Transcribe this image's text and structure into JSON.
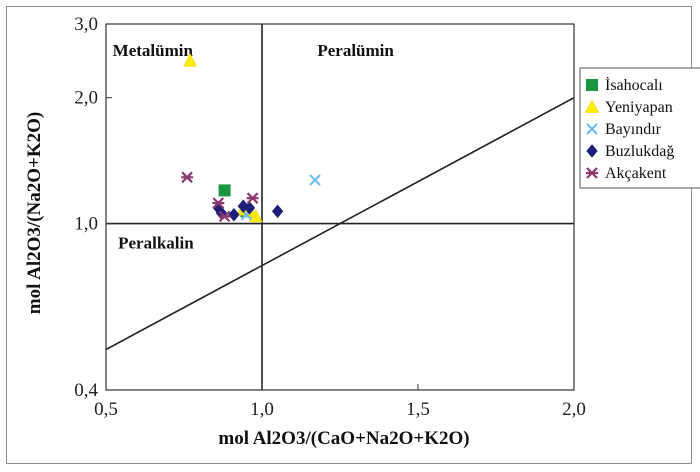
{
  "chart_data": {
    "type": "scatter",
    "title": "",
    "xlabel": "mol Al2O3/(CaO+Na2O+K2O)",
    "ylabel": "mol Al2O3/(Na2O+K2O)",
    "xlim": [
      0.5,
      2.0
    ],
    "ylim": [
      0.4,
      3.0
    ],
    "y_scale": "log",
    "grid": false,
    "legend_position": "right",
    "x_ticks": [
      {
        "value": 0.5,
        "label": "0,5"
      },
      {
        "value": 1.0,
        "label": "1,0"
      },
      {
        "value": 1.5,
        "label": "1,5"
      },
      {
        "value": 2.0,
        "label": "2,0"
      }
    ],
    "y_ticks": [
      {
        "value": 0.4,
        "label": "0,4"
      },
      {
        "value": 1.0,
        "label": "1,0"
      },
      {
        "value": 2.0,
        "label": "2,0"
      },
      {
        "value": 3.0,
        "label": "3,0"
      }
    ],
    "regions": [
      {
        "label": "Metalümin",
        "x": 0.65,
        "y": 2.6
      },
      {
        "label": "Peralümin",
        "x": 1.3,
        "y": 2.6
      },
      {
        "label": "Peralkalin",
        "x": 0.66,
        "y": 0.9
      }
    ],
    "boundaries": [
      {
        "name": "vertical",
        "points": [
          [
            1.0,
            0.4
          ],
          [
            1.0,
            3.0
          ]
        ]
      },
      {
        "name": "horizontal",
        "points": [
          [
            0.5,
            1.0
          ],
          [
            2.0,
            1.0
          ]
        ]
      },
      {
        "name": "diagonal",
        "points": [
          [
            0.5,
            0.5
          ],
          [
            2.0,
            2.0
          ]
        ]
      }
    ],
    "series": [
      {
        "name": "İsahocalı",
        "marker": "square",
        "color": "#1a9641",
        "points": [
          [
            0.88,
            1.2
          ],
          [
            0.95,
            1.07
          ]
        ]
      },
      {
        "name": "Yeniyapan",
        "marker": "triangle",
        "color": "#ffee00",
        "points": [
          [
            0.77,
            2.45
          ],
          [
            0.98,
            1.04
          ],
          [
            0.96,
            1.07
          ],
          [
            0.94,
            1.08
          ]
        ]
      },
      {
        "name": "Bayındır",
        "marker": "x",
        "color": "#66bbee",
        "points": [
          [
            1.17,
            1.27
          ],
          [
            0.95,
            1.05
          ]
        ]
      },
      {
        "name": "Buzlukdağ",
        "marker": "diamond",
        "color": "#1f1f7a",
        "points": [
          [
            0.86,
            1.09
          ],
          [
            0.87,
            1.06
          ],
          [
            0.91,
            1.05
          ],
          [
            0.94,
            1.1
          ],
          [
            1.05,
            1.07
          ],
          [
            0.96,
            1.09
          ]
        ]
      },
      {
        "name": "Akçakent",
        "marker": "asterisk",
        "color": "#8b3a70",
        "points": [
          [
            0.76,
            1.29
          ],
          [
            0.86,
            1.12
          ],
          [
            0.97,
            1.15
          ],
          [
            0.88,
            1.04
          ]
        ]
      }
    ]
  }
}
